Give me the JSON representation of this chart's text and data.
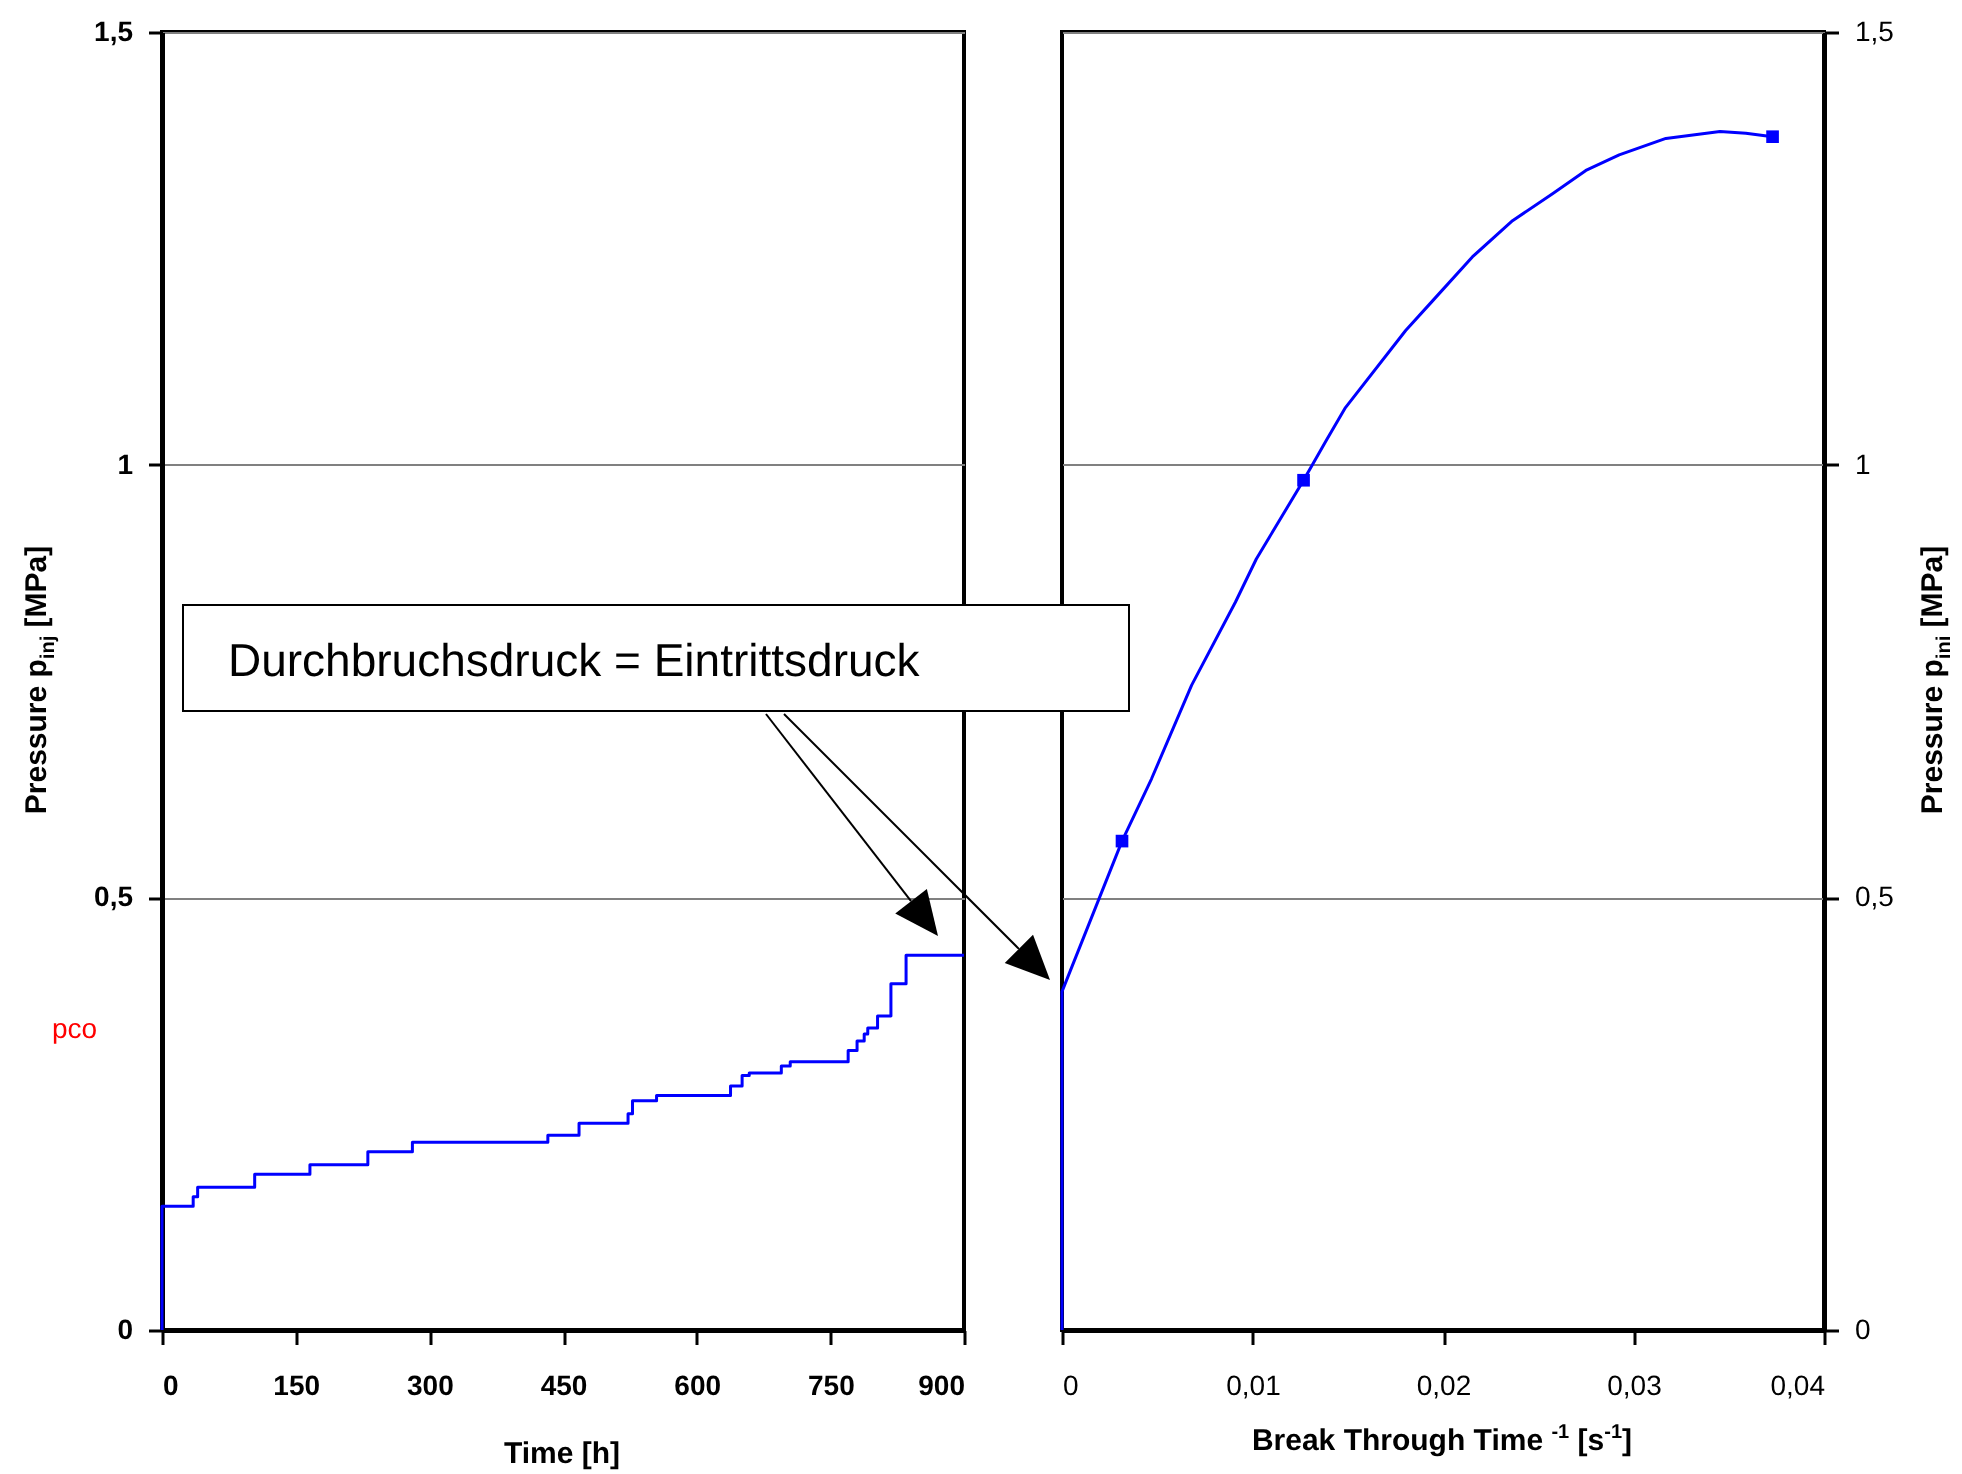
{
  "chart_data": [
    {
      "type": "step",
      "xlabel": "Time [h]",
      "ylabel": "Pressure  p$_{inj}$  [MPa]",
      "xlim": [
        0,
        900
      ],
      "xticks": [
        0,
        150,
        300,
        450,
        600,
        750,
        900
      ],
      "ylim": [
        0,
        1.5
      ],
      "yticks": [
        0,
        {
          "value": 0.5,
          "label": "0,5"
        },
        1,
        {
          "value": 1.5,
          "label": "1,5"
        }
      ],
      "grid": "y",
      "annotations": [
        "Durchbruchsdruck = Eintrittsdruck",
        "pco"
      ],
      "series": [
        {
          "color": "#0000ff",
          "x": [
            0,
            0,
            35,
            40,
            104,
            166,
            231,
            281,
            433,
            468,
            523,
            528,
            555,
            638,
            651,
            659,
            695,
            705,
            770,
            780,
            788,
            792,
            803,
            818,
            835,
            900
          ],
          "values": [
            0,
            0.143,
            0.154,
            0.165,
            0.18,
            0.191,
            0.206,
            0.217,
            0.225,
            0.239,
            0.25,
            0.265,
            0.271,
            0.282,
            0.294,
            0.297,
            0.305,
            0.31,
            0.323,
            0.334,
            0.342,
            0.349,
            0.363,
            0.4,
            0.433,
            0.433
          ]
        }
      ]
    },
    {
      "type": "line",
      "xlabel": "Break Through Time $^{-1}$ [s$^{-1}$]",
      "y2label": "Pressure  p$_{ini}$  [MPa]",
      "xlim": [
        0,
        0.04
      ],
      "xticks": [
        0,
        {
          "value": 0.01,
          "label": "0,01"
        },
        {
          "value": 0.02,
          "label": "0,02"
        },
        {
          "value": 0.03,
          "label": "0,03"
        },
        {
          "value": 0.04,
          "label": "0,04"
        }
      ],
      "y2lim": [
        0,
        1.5
      ],
      "y2ticks": [
        0,
        {
          "value": 0.5,
          "label": "0,5"
        },
        1,
        {
          "value": 1.5,
          "label": "1,5"
        }
      ],
      "grid": "y",
      "series": [
        {
          "type": "line",
          "axis": "y2",
          "color": "#0000ff",
          "x": [
            0,
            0,
            0.00315,
            0.0047,
            0.0068,
            0.0091,
            0.0102,
            0.01268,
            0.01387,
            0.01488,
            0.01804,
            0.01944,
            0.02154,
            0.02365,
            0.02575,
            0.0275,
            0.02925,
            0.0317,
            0.03454,
            0.0359,
            0.0373
          ],
          "values": [
            0,
            0.391,
            0.565,
            0.637,
            0.745,
            0.841,
            0.891,
            0.982,
            1.028,
            1.066,
            1.155,
            1.189,
            1.24,
            1.282,
            1.313,
            1.34,
            1.358,
            1.377,
            1.385,
            1.383,
            1.379
          ]
        },
        {
          "type": "scatter",
          "axis": "y2",
          "marker": "square",
          "color": "#0000ff",
          "x": [
            0.00315,
            0.01268,
            0.0373
          ],
          "values": [
            0.565,
            0.982,
            1.379
          ]
        }
      ]
    }
  ]
}
